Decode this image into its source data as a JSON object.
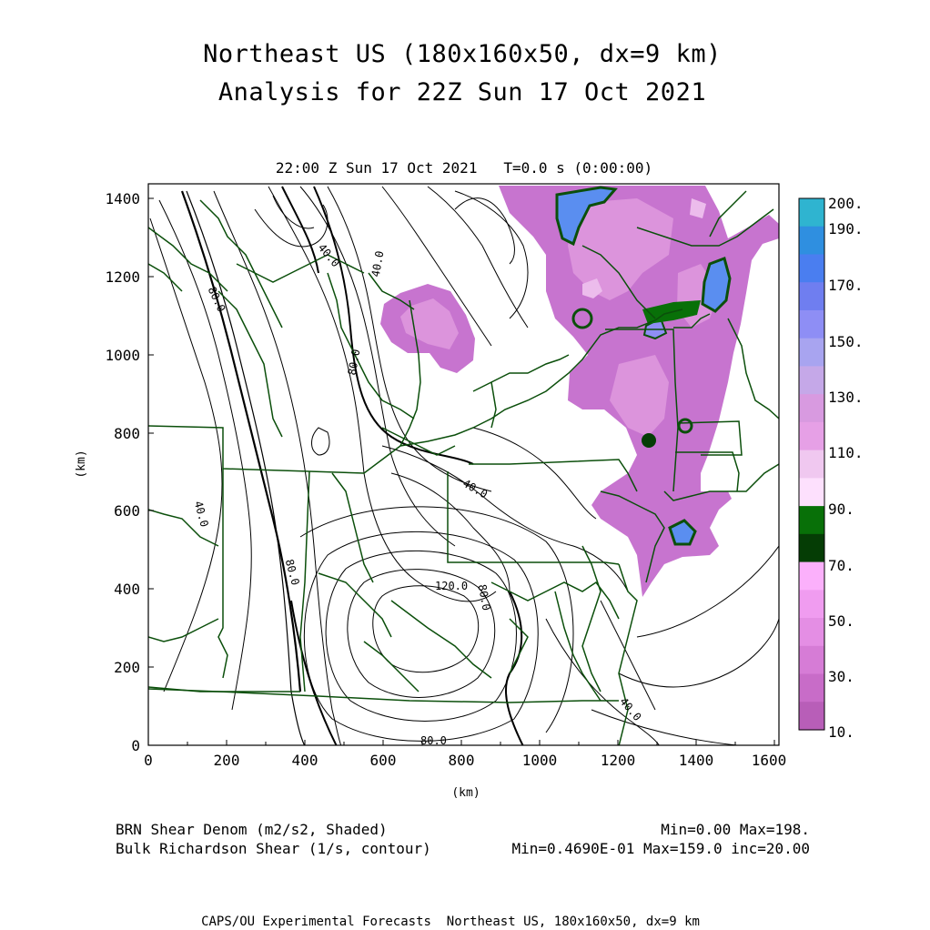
{
  "title_line1": "Northeast US (180x160x50, dx=9 km)",
  "title_line2": "Analysis for 22Z Sun 17 Oct 2021",
  "subtitle": "22:00 Z Sun 17 Oct 2021   T=0.0 s (0:00:00)",
  "axes": {
    "x_label": "(km)",
    "y_label": "(km)",
    "x_ticks": [
      "0",
      "200",
      "400",
      "600",
      "800",
      "1000",
      "1200",
      "1400",
      "1600"
    ],
    "y_ticks": [
      "0",
      "200",
      "400",
      "600",
      "800",
      "1000",
      "1200",
      "1400"
    ],
    "x_range": [
      0,
      1620
    ],
    "y_range": [
      0,
      1440
    ]
  },
  "colorbar": {
    "labels": [
      "200.",
      "190.",
      "170.",
      "150.",
      "130.",
      "110.",
      "90.",
      "70.",
      "50.",
      "30.",
      "10."
    ],
    "colors": [
      "#2fb4d0",
      "#2f8fe0",
      "#4a7ef0",
      "#6f7ef0",
      "#8e8ef5",
      "#a8a4f0",
      "#c5a8e8",
      "#d89ae0",
      "#e6a0e6",
      "#f0c8f0",
      "#fde0fd",
      "#087008",
      "#053d05",
      "#fbb0fb",
      "#f09cf0",
      "#e48ee4",
      "#d67cd6",
      "#c86cc8",
      "#b85eb8"
    ]
  },
  "contour_labels": [
    "40.0",
    "80.0",
    "40.0",
    "80.0",
    "40.0",
    "40.0",
    "80.0",
    "120.0",
    "80.0",
    "40.0",
    "80.0"
  ],
  "legend_bottom": {
    "left_line1": "BRN Shear Denom (m2/s2, Shaded)",
    "left_line2": "Bulk Richardson Shear (1/s, contour)",
    "right_line1": "Min=0.00 Max=198.",
    "right_line2": "Min=0.4690E-01 Max=159.0 inc=20.00"
  },
  "footer": "CAPS/OU Experimental Forecasts  Northeast US, 180x160x50, dx=9 km",
  "colors": {
    "boundary": "#0b4f0b",
    "contour": "#000000",
    "shade_main": "#c774cf",
    "shade_light": "#dc94dc",
    "shade_blue": "#5a8ef0"
  }
}
